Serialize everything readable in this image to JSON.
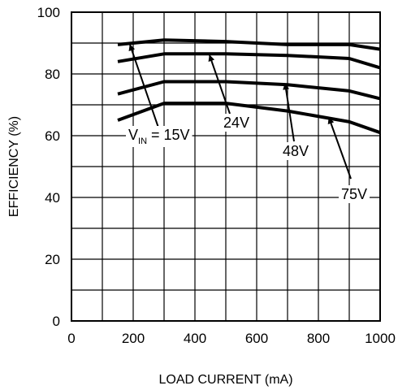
{
  "chart_data": {
    "type": "line",
    "title": "",
    "xlabel": "LOAD CURRENT (mA)",
    "ylabel": "EFFICIENCY (%)",
    "xlim": [
      0,
      1000
    ],
    "ylim": [
      0,
      100
    ],
    "xticks": [
      0,
      200,
      400,
      600,
      800,
      1000
    ],
    "yticks": [
      0,
      20,
      40,
      60,
      80,
      100
    ],
    "x_grid_step": 100,
    "y_grid_step": 10,
    "grid": true,
    "legend": "none",
    "series": [
      {
        "label_main": "V",
        "label_sub": "IN",
        "label_tail": " = 15V",
        "x": [
          150,
          300,
          500,
          700,
          900,
          1000
        ],
        "y": [
          89.5,
          91,
          90.5,
          89.5,
          89.5,
          88
        ]
      },
      {
        "label_main": "24V",
        "x": [
          150,
          300,
          500,
          700,
          900,
          1000
        ],
        "y": [
          84,
          86.5,
          86.5,
          86,
          85,
          82
        ]
      },
      {
        "label_main": "48V",
        "x": [
          150,
          300,
          500,
          700,
          900,
          1000
        ],
        "y": [
          73.5,
          77.5,
          77.5,
          76.5,
          74.5,
          72
        ]
      },
      {
        "label_main": "75V",
        "x": [
          150,
          300,
          500,
          700,
          900,
          1000
        ],
        "y": [
          65,
          70.5,
          70.5,
          68,
          64.5,
          61
        ]
      }
    ]
  }
}
